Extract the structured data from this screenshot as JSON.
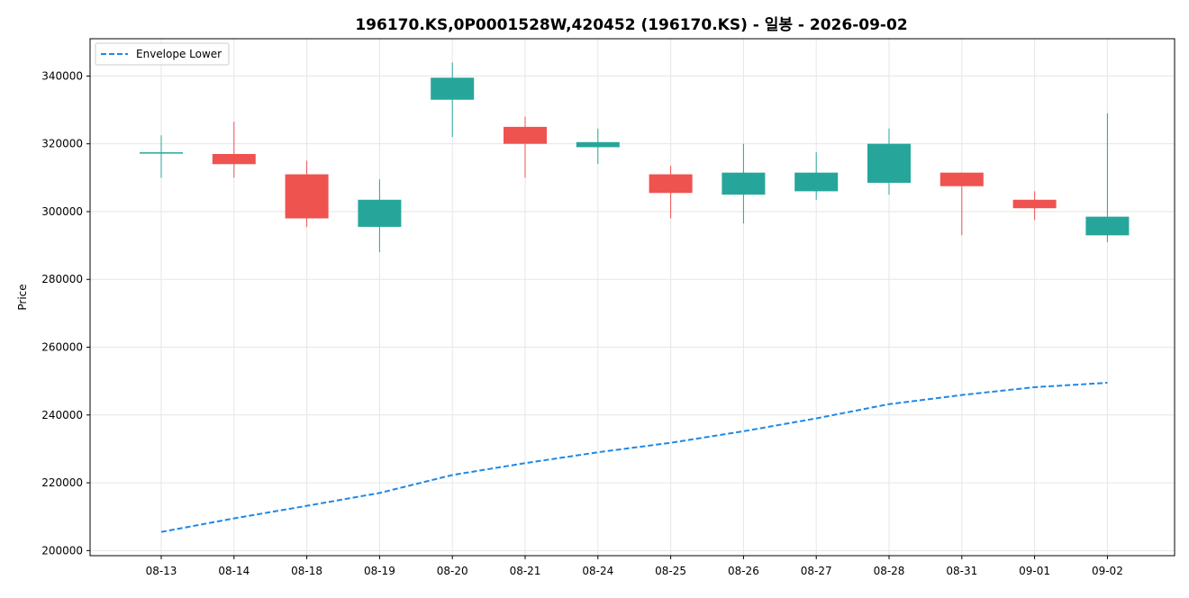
{
  "chart_data": {
    "type": "candlestick",
    "title": "196170.KS,0P0001528W,420452 (196170.KS) - 일봉 - 2026-09-02",
    "xlabel": "",
    "ylabel": "Price",
    "ylim": [
      198500,
      351000
    ],
    "yticks": [
      200000,
      220000,
      240000,
      260000,
      280000,
      300000,
      320000,
      340000
    ],
    "grid": true,
    "legend_position": "top-left",
    "categories": [
      "08-13",
      "08-14",
      "08-18",
      "08-19",
      "08-20",
      "08-21",
      "08-24",
      "08-25",
      "08-26",
      "08-27",
      "08-28",
      "08-31",
      "09-01",
      "09-02"
    ],
    "series": [
      {
        "kind": "ohlc",
        "open": [
          317500,
          317000,
          311000,
          295500,
          333000,
          325000,
          319000,
          311000,
          305000,
          306000,
          308500,
          311500,
          303500,
          293000
        ],
        "high": [
          322500,
          326500,
          315000,
          309500,
          344000,
          328000,
          324500,
          313500,
          320000,
          317500,
          324500,
          311500,
          306000,
          329000
        ],
        "low": [
          310000,
          310000,
          295500,
          288000,
          322000,
          310000,
          314000,
          298000,
          296500,
          303500,
          305000,
          293000,
          297500,
          291000
        ],
        "close": [
          317500,
          314000,
          298000,
          303500,
          339500,
          320000,
          320500,
          305500,
          311500,
          311500,
          320000,
          307500,
          301000,
          298500
        ]
      },
      {
        "name": "Envelope Lower",
        "kind": "line",
        "style": "dashed",
        "values": [
          205500,
          209500,
          213200,
          217000,
          222300,
          225800,
          229000,
          231800,
          235200,
          239000,
          243200,
          245900,
          248200,
          249500
        ]
      }
    ],
    "colors": {
      "up": "#26a69a",
      "down": "#ef5350",
      "envelope": "#1e88e5",
      "grid": "#e6e6e6",
      "axis": "#000000"
    }
  }
}
